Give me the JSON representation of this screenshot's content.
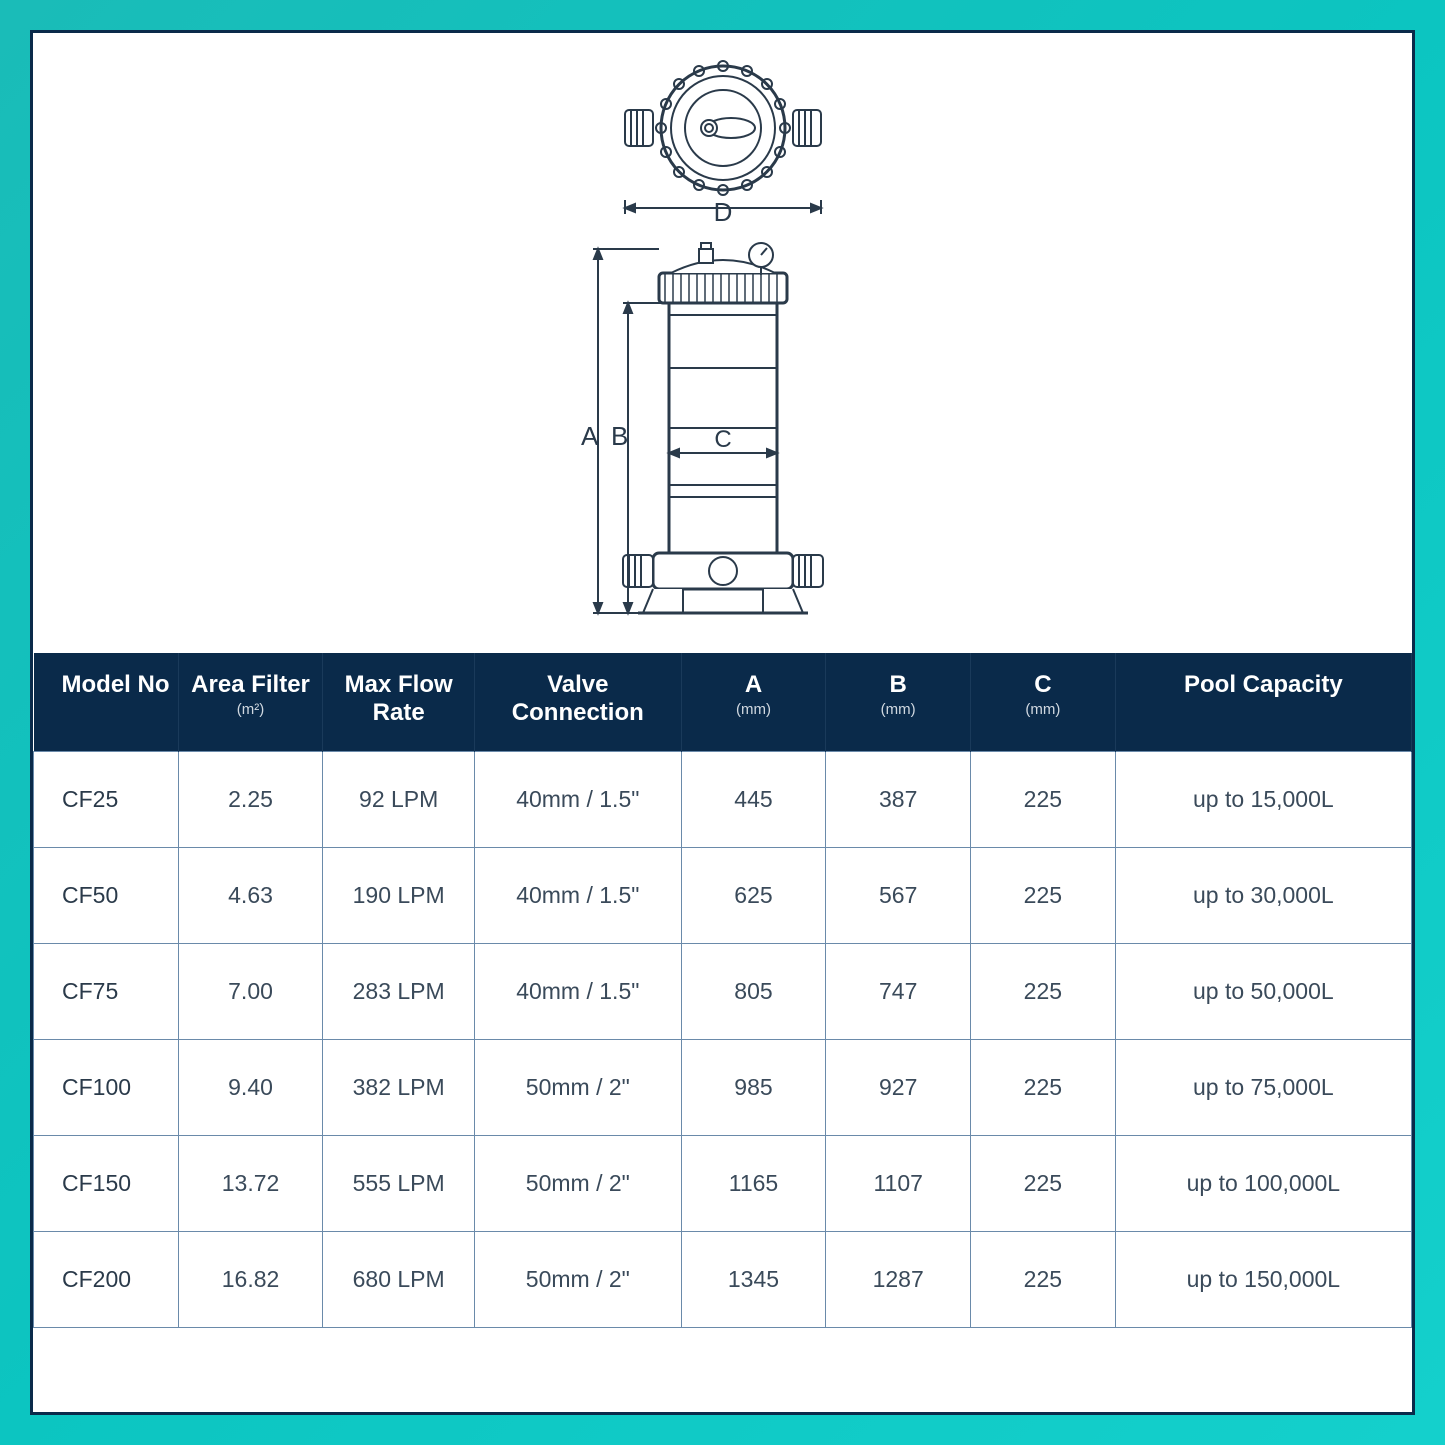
{
  "diagram": {
    "labels": {
      "A": "A",
      "B": "B",
      "C": "C",
      "D": "D"
    },
    "stroke": "#2a3a4a",
    "label_fontsize": 28,
    "label_color": "#2a3a4a"
  },
  "table": {
    "header_bg": "#0a2a4a",
    "header_fg": "#ffffff",
    "cell_border": "#6a8aaa",
    "cell_fg": "#3a4a5a",
    "columns": [
      {
        "key": "model",
        "label": "Model No",
        "sub": ""
      },
      {
        "key": "area",
        "label": "Area Filter",
        "sub": "(m²)"
      },
      {
        "key": "flow",
        "label": "Max Flow Rate",
        "sub": ""
      },
      {
        "key": "valve",
        "label": "Valve Connection",
        "sub": ""
      },
      {
        "key": "a",
        "label": "A",
        "sub": "(mm)"
      },
      {
        "key": "b",
        "label": "B",
        "sub": "(mm)"
      },
      {
        "key": "c",
        "label": "C",
        "sub": "(mm)"
      },
      {
        "key": "pool",
        "label": "Pool Capacity",
        "sub": ""
      }
    ],
    "rows": [
      {
        "model": "CF25",
        "area": "2.25",
        "flow": "92 LPM",
        "valve": "40mm / 1.5\"",
        "a": "445",
        "b": "387",
        "c": "225",
        "pool": "up to 15,000L"
      },
      {
        "model": "CF50",
        "area": "4.63",
        "flow": "190 LPM",
        "valve": "40mm / 1.5\"",
        "a": "625",
        "b": "567",
        "c": "225",
        "pool": "up to 30,000L"
      },
      {
        "model": "CF75",
        "area": "7.00",
        "flow": "283 LPM",
        "valve": "40mm / 1.5\"",
        "a": "805",
        "b": "747",
        "c": "225",
        "pool": "up to 50,000L"
      },
      {
        "model": "CF100",
        "area": "9.40",
        "flow": "382 LPM",
        "valve": "50mm / 2\"",
        "a": "985",
        "b": "927",
        "c": "225",
        "pool": "up to 75,000L"
      },
      {
        "model": "CF150",
        "area": "13.72",
        "flow": "555 LPM",
        "valve": "50mm / 2\"",
        "a": "1165",
        "b": "1107",
        "c": "225",
        "pool": "up to 100,000L"
      },
      {
        "model": "CF200",
        "area": "16.82",
        "flow": "680 LPM",
        "valve": "50mm / 2\"",
        "a": "1345",
        "b": "1287",
        "c": "225",
        "pool": "up to 150,000L"
      }
    ]
  }
}
